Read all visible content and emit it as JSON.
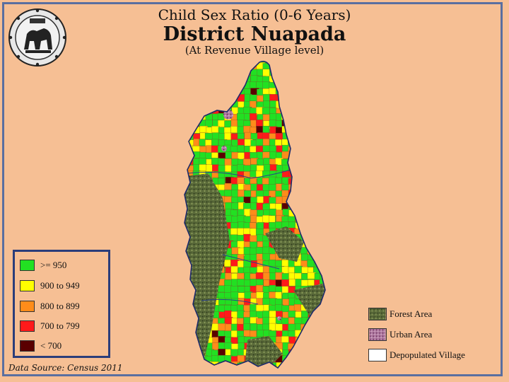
{
  "title": {
    "line1": "Child Sex Ratio (0-6 Years)",
    "line2": "District Nuapada",
    "line3": "(At Revenue Village level)"
  },
  "emblem": {
    "icon": "state-emblem-icon"
  },
  "legend": {
    "items": [
      {
        "label": ">= 950",
        "color": "#22e022"
      },
      {
        "label": "900 to 949",
        "color": "#ffff00"
      },
      {
        "label": "800 to 899",
        "color": "#ff8c1a"
      },
      {
        "label": "700 to 799",
        "color": "#ff1a1a"
      },
      {
        "label": "< 700",
        "color": "#5a0000"
      }
    ]
  },
  "other_legend": {
    "items": [
      {
        "label": "Forest Area",
        "color": "#5b6b3a",
        "pattern": "forest"
      },
      {
        "label": "Urban Area",
        "color": "#b07aa0",
        "pattern": "urban"
      },
      {
        "label": "Depopulated Village",
        "color": "#ffffff",
        "pattern": "none"
      }
    ]
  },
  "source": "Data Source: Census 2011"
}
